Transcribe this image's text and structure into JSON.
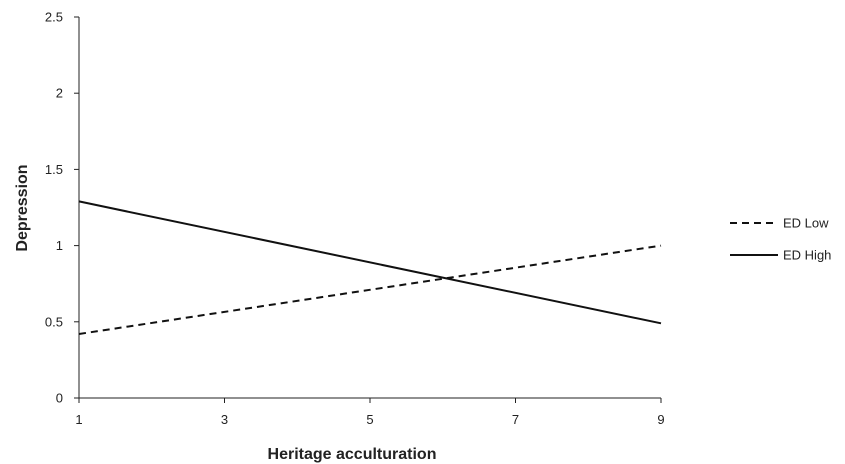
{
  "chart_data": {
    "type": "line",
    "title": "",
    "xlabel": "Heritage acculturation",
    "ylabel": "Depression",
    "xlim": [
      1,
      9
    ],
    "ylim": [
      0,
      2.5
    ],
    "x_ticks": [
      1,
      3,
      5,
      7,
      9
    ],
    "y_ticks": [
      0,
      0.5,
      1,
      1.5,
      2,
      2.5
    ],
    "x_tick_labels": [
      "1",
      "3",
      "5",
      "7",
      "9"
    ],
    "y_tick_labels": [
      "0",
      "0.5",
      "1",
      "1.5",
      "2",
      "2.5"
    ],
    "grid": false,
    "legend_position": "right",
    "series": [
      {
        "name": "ED Low",
        "style": "dashed",
        "color": "#111111",
        "x": [
          1,
          9
        ],
        "y": [
          0.42,
          1.0
        ]
      },
      {
        "name": "ED High",
        "style": "solid",
        "color": "#111111",
        "x": [
          1,
          9
        ],
        "y": [
          1.29,
          0.49
        ]
      }
    ]
  }
}
